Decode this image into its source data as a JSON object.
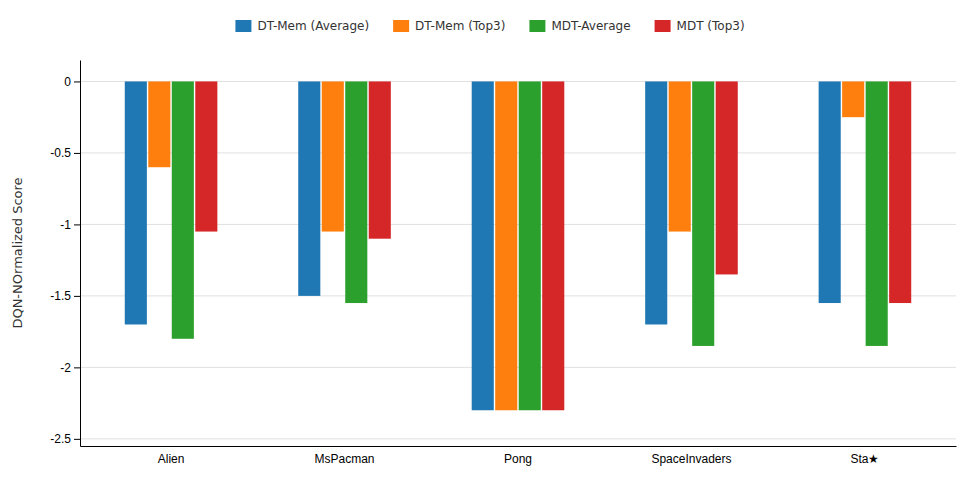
{
  "chart_data": {
    "type": "bar",
    "categories": [
      "Alien",
      "MsPacman",
      "Pong",
      "SpaceInvaders",
      "Sta★"
    ],
    "series": [
      {
        "name": "DT-Mem (Average)",
        "values": [
          -1.7,
          -1.5,
          -2.3,
          -1.7,
          -1.55
        ]
      },
      {
        "name": "DT-Mem (Top3)",
        "values": [
          -0.6,
          -1.05,
          -2.3,
          -1.05,
          -0.25
        ]
      },
      {
        "name": "MDT-Average",
        "values": [
          -1.8,
          -1.55,
          -2.3,
          -1.85,
          -1.85
        ]
      },
      {
        "name": "MDT (Top3)",
        "values": [
          -1.05,
          -1.1,
          -2.3,
          -1.35,
          -1.55
        ]
      }
    ],
    "ylabel": "DQN-NOrmalized Score",
    "ylim": [
      -2.55,
      0.15
    ],
    "yticks": [
      0,
      -0.5,
      -1,
      -1.5,
      -2,
      -2.5
    ],
    "grid": true,
    "legend": "top"
  }
}
